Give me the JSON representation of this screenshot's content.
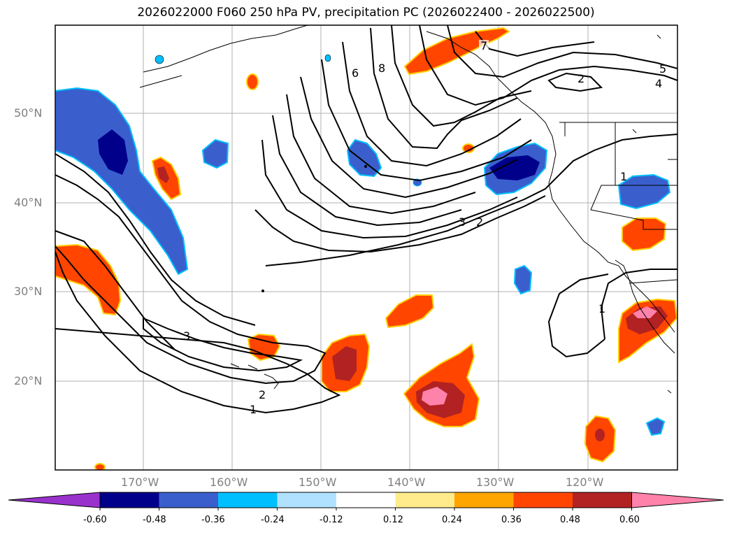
{
  "title": "2026022000 F060 250 hPa PV, precipitation PC (2026022400 - 2026022500)",
  "lat_labels": [
    "50°N",
    "40°N",
    "30°N",
    "20°N"
  ],
  "lon_labels": [
    "170°W",
    "160°W",
    "150°W",
    "140°W",
    "130°W",
    "120°W"
  ],
  "contour_labels": [
    "7",
    "6",
    "8",
    "5",
    "4",
    "2",
    "1",
    "3",
    "2",
    "3",
    "2",
    "1",
    "1"
  ],
  "colorbar": {
    "ticks": [
      "-0.60",
      "-0.48",
      "-0.36",
      "-0.24",
      "-0.12",
      "0.12",
      "0.24",
      "0.36",
      "0.48",
      "0.60"
    ],
    "colors": [
      "#9932cc",
      "#00008b",
      "#3a5fcd",
      "#00bfff",
      "#b0e2ff",
      "#ffffff",
      "#ffeb8c",
      "#ffa500",
      "#ff4500",
      "#b22222",
      "#ff82ab"
    ]
  }
}
